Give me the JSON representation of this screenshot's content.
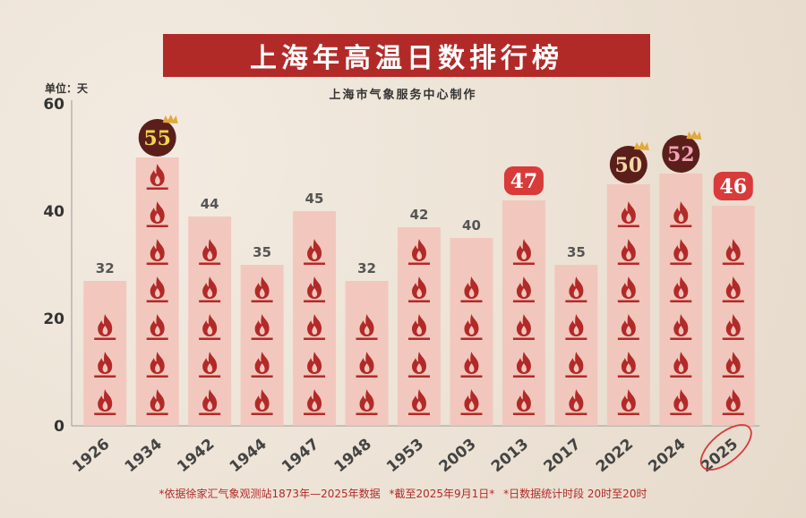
{
  "title": "上海年高温日数排行榜",
  "subtitle": "上海市气象服务中心制作",
  "unit_label": "单位：天",
  "footer": [
    "*依据徐家汇气象观测站1873年—2025年数据",
    "*截至2025年9月1日*",
    "*日数据统计时段 20时至20时"
  ],
  "colors": {
    "title_bg": "#b22a28",
    "bar": "#f2c2b8",
    "flame": "#b22a28",
    "badge_dark": "#5a1f1a",
    "badge_red": "#d93a3a",
    "badge_gold": "#f1d64c",
    "badge_pink": "#f3a3b6",
    "badge_cream": "#f4d6a8",
    "crown": "#e2a93a"
  },
  "chart_data": {
    "type": "bar",
    "categories": [
      "1926",
      "1934",
      "1942",
      "1944",
      "1947",
      "1948",
      "1953",
      "2003",
      "2013",
      "2017",
      "2022",
      "2024",
      "2025"
    ],
    "values": [
      32,
      55,
      44,
      35,
      45,
      32,
      42,
      40,
      47,
      35,
      50,
      52,
      46
    ],
    "highlights": {
      "1934": {
        "style": "dark-circle",
        "text_color": "badge_gold",
        "crown": true
      },
      "2013": {
        "style": "red-rounded",
        "text_color": "white",
        "crown": false
      },
      "2022": {
        "style": "dark-circle",
        "text_color": "badge_cream",
        "crown": true
      },
      "2024": {
        "style": "dark-circle",
        "text_color": "badge_pink",
        "crown": true
      },
      "2025": {
        "style": "red-rounded",
        "text_color": "white",
        "crown": false,
        "circled_label": true
      }
    },
    "ylim": [
      0,
      60
    ],
    "yticks": [
      0,
      20,
      40,
      60
    ],
    "grid": false
  }
}
